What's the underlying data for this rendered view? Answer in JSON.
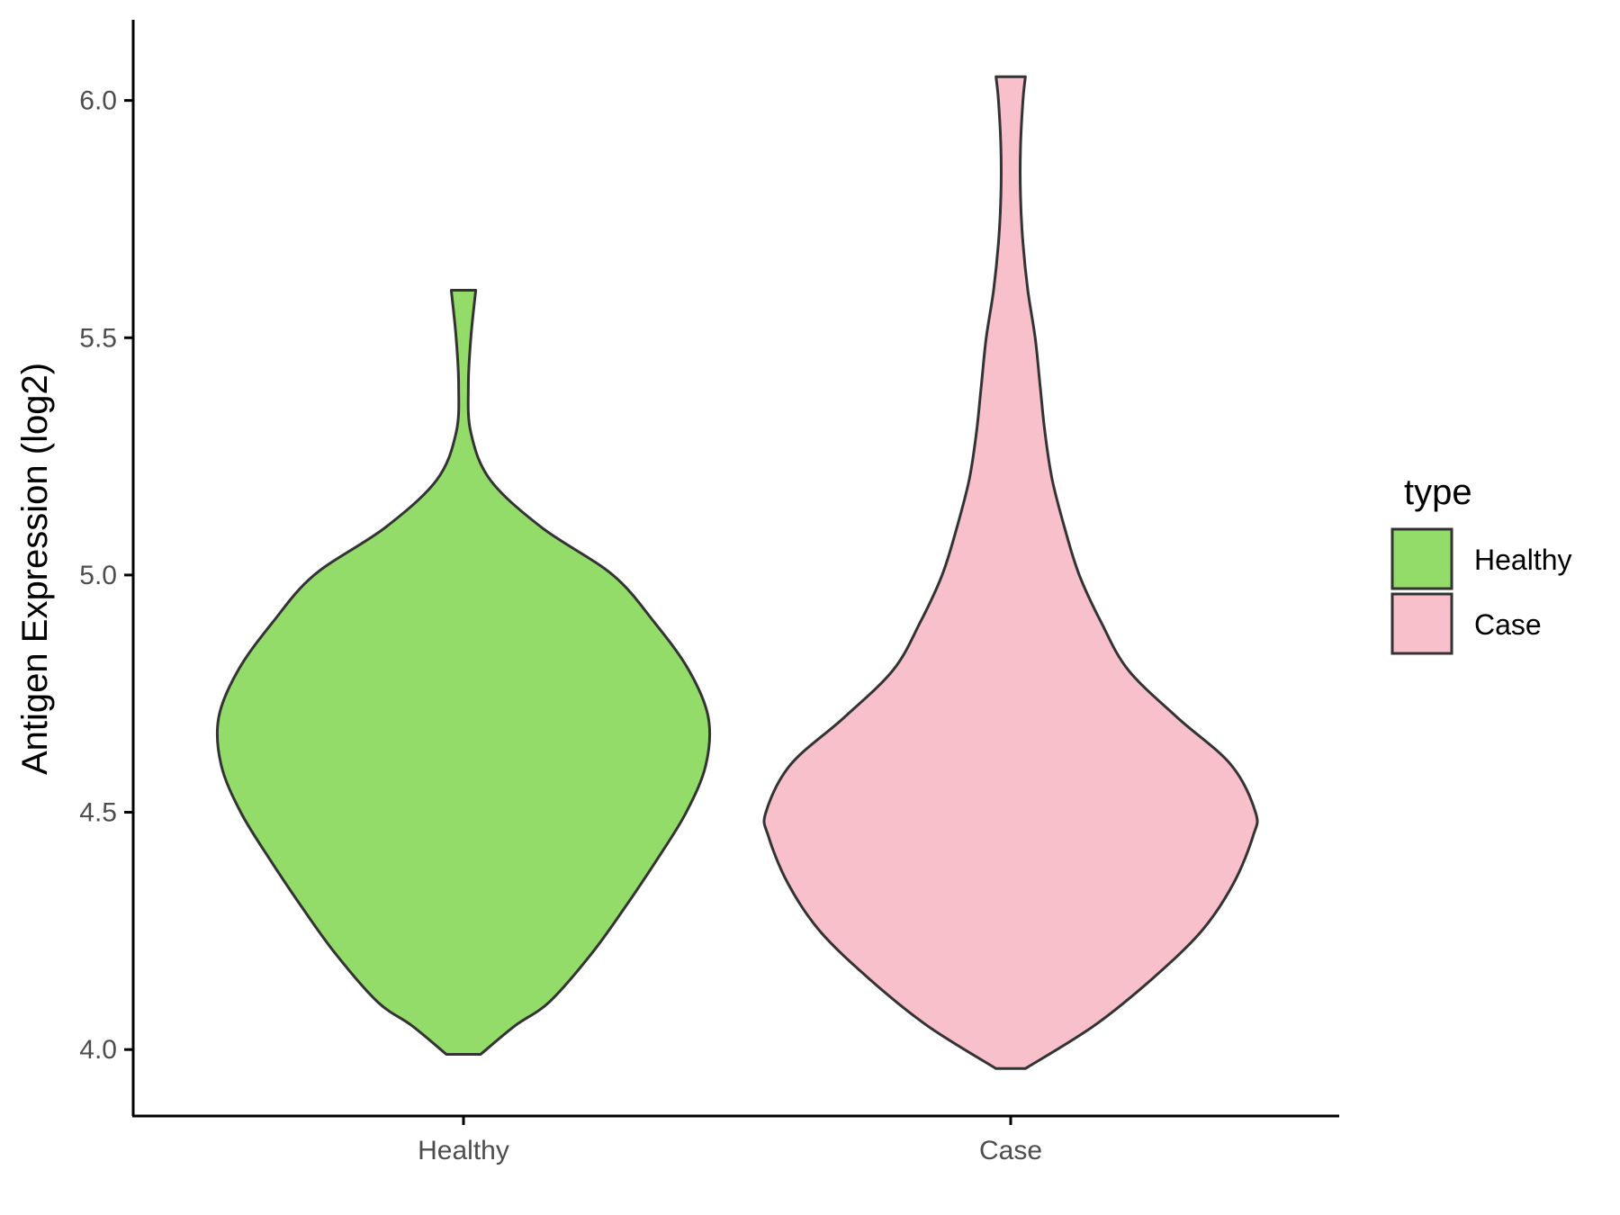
{
  "chart_data": {
    "type": "violin",
    "title": "",
    "xlabel": "",
    "ylabel": "Antigen Expression (log2)",
    "ylim": [
      3.86,
      6.17
    ],
    "yticks": [
      4.0,
      4.5,
      5.0,
      5.5,
      6.0
    ],
    "ytick_labels": [
      "4.0",
      "4.5",
      "5.0",
      "5.5",
      "6.0"
    ],
    "categories": [
      "Healthy",
      "Case"
    ],
    "grid": false,
    "legend": {
      "title": "type",
      "position": "right",
      "entries": [
        "Healthy",
        "Case"
      ]
    },
    "series": [
      {
        "name": "Healthy",
        "color": "#93dc6a",
        "min": 3.99,
        "max": 5.6,
        "density_relative_width": [
          [
            3.99,
            0.07
          ],
          [
            4.05,
            0.21
          ],
          [
            4.1,
            0.35
          ],
          [
            4.2,
            0.52
          ],
          [
            4.3,
            0.66
          ],
          [
            4.4,
            0.79
          ],
          [
            4.5,
            0.91
          ],
          [
            4.6,
            0.99
          ],
          [
            4.7,
            1.0
          ],
          [
            4.8,
            0.92
          ],
          [
            4.9,
            0.78
          ],
          [
            5.0,
            0.61
          ],
          [
            5.1,
            0.32
          ],
          [
            5.2,
            0.11
          ],
          [
            5.3,
            0.03
          ],
          [
            5.4,
            0.02
          ],
          [
            5.5,
            0.03
          ],
          [
            5.6,
            0.05
          ]
        ]
      },
      {
        "name": "Case",
        "color": "#f8c0cb",
        "min": 3.96,
        "max": 6.05,
        "density_relative_width": [
          [
            3.96,
            0.06
          ],
          [
            4.05,
            0.34
          ],
          [
            4.15,
            0.58
          ],
          [
            4.25,
            0.78
          ],
          [
            4.35,
            0.91
          ],
          [
            4.45,
            0.99
          ],
          [
            4.5,
            1.0
          ],
          [
            4.6,
            0.9
          ],
          [
            4.7,
            0.68
          ],
          [
            4.8,
            0.48
          ],
          [
            4.9,
            0.37
          ],
          [
            5.0,
            0.28
          ],
          [
            5.1,
            0.22
          ],
          [
            5.2,
            0.17
          ],
          [
            5.3,
            0.14
          ],
          [
            5.4,
            0.12
          ],
          [
            5.5,
            0.1
          ],
          [
            5.6,
            0.07
          ],
          [
            5.7,
            0.05
          ],
          [
            5.8,
            0.04
          ],
          [
            5.9,
            0.04
          ],
          [
            6.0,
            0.05
          ],
          [
            6.05,
            0.06
          ]
        ]
      }
    ]
  }
}
